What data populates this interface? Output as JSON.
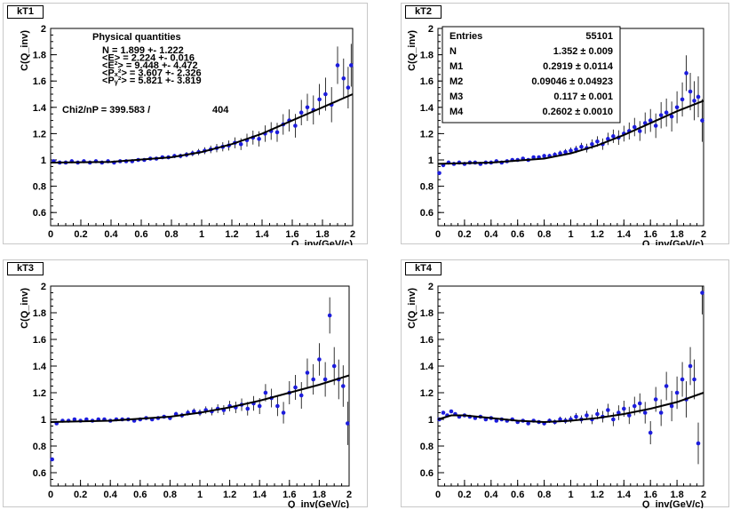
{
  "chart_data": [
    {
      "type": "scatter",
      "panel_label": "kT1",
      "ylabel": "C(Q_inv)",
      "xlabel": "Q_inv(GeV/c)",
      "xlim": [
        0,
        2
      ],
      "ylim": [
        0.5,
        2
      ],
      "x_ticks": [
        "0",
        "0.2",
        "0.4",
        "0.6",
        "0.8",
        "1",
        "1.2",
        "1.4",
        "1.6",
        "1.8",
        "2"
      ],
      "y_ticks": [
        "0.6",
        "0.8",
        "1",
        "1.2",
        "1.4",
        "1.6",
        "1.8",
        "2"
      ],
      "stats": {
        "title": "Physical quantities",
        "lines": [
          "N = 1.899 +- 1.222",
          "<E> = 2.224 +- 0.016",
          "<E²> = 9.448 +- 4.472",
          "<Pₓ²> = 3.607 +- 2.326",
          "<Pᵧ²> = 5.821 +- 3.819"
        ],
        "chi2_label": "Chi2/nP = 399.583 /",
        "chi2_n": "404"
      },
      "fit": [
        [
          0,
          0.98
        ],
        [
          0.4,
          0.985
        ],
        [
          0.8,
          1.02
        ],
        [
          1.0,
          1.06
        ],
        [
          1.2,
          1.12
        ],
        [
          1.4,
          1.2
        ],
        [
          1.6,
          1.3
        ],
        [
          1.8,
          1.4
        ],
        [
          1.9,
          1.45
        ],
        [
          2.0,
          1.5
        ]
      ],
      "points": [
        [
          0.02,
          0.99
        ],
        [
          0.06,
          0.98
        ],
        [
          0.1,
          0.98
        ],
        [
          0.14,
          0.99
        ],
        [
          0.18,
          0.98
        ],
        [
          0.22,
          0.99
        ],
        [
          0.26,
          0.98
        ],
        [
          0.3,
          0.99
        ],
        [
          0.34,
          0.98
        ],
        [
          0.38,
          0.99
        ],
        [
          0.42,
          0.98
        ],
        [
          0.46,
          0.99
        ],
        [
          0.5,
          0.99
        ],
        [
          0.54,
          0.99
        ],
        [
          0.58,
          1.0
        ],
        [
          0.62,
          1.0
        ],
        [
          0.66,
          1.01
        ],
        [
          0.7,
          1.01
        ],
        [
          0.74,
          1.02
        ],
        [
          0.78,
          1.02
        ],
        [
          0.82,
          1.03
        ],
        [
          0.86,
          1.03
        ],
        [
          0.9,
          1.04
        ],
        [
          0.94,
          1.05
        ],
        [
          0.98,
          1.06
        ],
        [
          1.02,
          1.07
        ],
        [
          1.06,
          1.08
        ],
        [
          1.1,
          1.09
        ],
        [
          1.14,
          1.1
        ],
        [
          1.18,
          1.11
        ],
        [
          1.22,
          1.13
        ],
        [
          1.26,
          1.12
        ],
        [
          1.3,
          1.15
        ],
        [
          1.34,
          1.17
        ],
        [
          1.38,
          1.16
        ],
        [
          1.42,
          1.2
        ],
        [
          1.46,
          1.22
        ],
        [
          1.5,
          1.21
        ],
        [
          1.54,
          1.27
        ],
        [
          1.58,
          1.3
        ],
        [
          1.62,
          1.26
        ],
        [
          1.66,
          1.36
        ],
        [
          1.7,
          1.4
        ],
        [
          1.74,
          1.38
        ],
        [
          1.78,
          1.46
        ],
        [
          1.82,
          1.5
        ],
        [
          1.86,
          1.42
        ],
        [
          1.9,
          1.72
        ],
        [
          1.94,
          1.62
        ],
        [
          1.97,
          1.55
        ],
        [
          1.99,
          1.72
        ]
      ]
    },
    {
      "type": "scatter",
      "panel_label": "kT2",
      "ylabel": "C(Q_inv)",
      "xlabel": "Q_inv(GeV/c)",
      "xlim": [
        0,
        2
      ],
      "ylim": [
        0.5,
        2
      ],
      "x_ticks": [
        "0",
        "0.2",
        "0.4",
        "0.6",
        "0.8",
        "1",
        "1.2",
        "1.4",
        "1.6",
        "1.8",
        "2"
      ],
      "y_ticks": [
        "0.6",
        "0.8",
        "1",
        "1.2",
        "1.4",
        "1.6",
        "1.8",
        "2"
      ],
      "stats": {
        "rows": [
          {
            "label": "Entries",
            "value": "55101"
          },
          {
            "label": "N",
            "value": "1.352 ± 0.009"
          },
          {
            "label": "M1",
            "value": "0.2919 ± 0.0114"
          },
          {
            "label": "M2",
            "value": "0.09046 ± 0.04923"
          },
          {
            "label": "M3",
            "value": "0.117 ± 0.001"
          },
          {
            "label": "M4",
            "value": "0.2602 ± 0.0010"
          }
        ]
      },
      "fit": [
        [
          0,
          0.97
        ],
        [
          0.4,
          0.98
        ],
        [
          0.8,
          1.01
        ],
        [
          1.0,
          1.05
        ],
        [
          1.2,
          1.11
        ],
        [
          1.4,
          1.19
        ],
        [
          1.6,
          1.28
        ],
        [
          1.8,
          1.37
        ],
        [
          2.0,
          1.45
        ]
      ],
      "points": [
        [
          0.01,
          0.9
        ],
        [
          0.04,
          0.96
        ],
        [
          0.08,
          0.98
        ],
        [
          0.12,
          0.97
        ],
        [
          0.16,
          0.98
        ],
        [
          0.2,
          0.97
        ],
        [
          0.24,
          0.98
        ],
        [
          0.28,
          0.98
        ],
        [
          0.32,
          0.97
        ],
        [
          0.36,
          0.98
        ],
        [
          0.4,
          0.98
        ],
        [
          0.44,
          0.99
        ],
        [
          0.48,
          0.98
        ],
        [
          0.52,
          0.99
        ],
        [
          0.56,
          1.0
        ],
        [
          0.6,
          1.0
        ],
        [
          0.64,
          1.01
        ],
        [
          0.68,
          1.0
        ],
        [
          0.72,
          1.02
        ],
        [
          0.76,
          1.02
        ],
        [
          0.8,
          1.03
        ],
        [
          0.84,
          1.03
        ],
        [
          0.88,
          1.04
        ],
        [
          0.92,
          1.05
        ],
        [
          0.96,
          1.06
        ],
        [
          1.0,
          1.07
        ],
        [
          1.04,
          1.08
        ],
        [
          1.08,
          1.1
        ],
        [
          1.12,
          1.09
        ],
        [
          1.16,
          1.12
        ],
        [
          1.2,
          1.14
        ],
        [
          1.24,
          1.12
        ],
        [
          1.28,
          1.16
        ],
        [
          1.32,
          1.18
        ],
        [
          1.36,
          1.17
        ],
        [
          1.4,
          1.2
        ],
        [
          1.44,
          1.22
        ],
        [
          1.48,
          1.25
        ],
        [
          1.52,
          1.22
        ],
        [
          1.56,
          1.28
        ],
        [
          1.6,
          1.3
        ],
        [
          1.64,
          1.26
        ],
        [
          1.68,
          1.34
        ],
        [
          1.72,
          1.36
        ],
        [
          1.76,
          1.33
        ],
        [
          1.8,
          1.4
        ],
        [
          1.84,
          1.46
        ],
        [
          1.87,
          1.66
        ],
        [
          1.9,
          1.52
        ],
        [
          1.93,
          1.45
        ],
        [
          1.96,
          1.48
        ],
        [
          1.99,
          1.3
        ]
      ]
    },
    {
      "type": "scatter",
      "panel_label": "kT3",
      "ylabel": "C(Q_inv)",
      "xlabel": "Q_inv(GeV/c)",
      "xlim": [
        0,
        2
      ],
      "ylim": [
        0.5,
        2
      ],
      "x_ticks": [
        "0",
        "0.2",
        "0.4",
        "0.6",
        "0.8",
        "1",
        "1.2",
        "1.4",
        "1.6",
        "1.8",
        "2"
      ],
      "y_ticks": [
        "0.6",
        "0.8",
        "1",
        "1.2",
        "1.4",
        "1.6",
        "1.8",
        "2"
      ],
      "fit": [
        [
          0,
          0.98
        ],
        [
          0.4,
          0.99
        ],
        [
          0.8,
          1.02
        ],
        [
          1.0,
          1.05
        ],
        [
          1.2,
          1.09
        ],
        [
          1.4,
          1.14
        ],
        [
          1.6,
          1.2
        ],
        [
          1.8,
          1.26
        ],
        [
          2.0,
          1.33
        ]
      ],
      "points": [
        [
          0.01,
          0.7
        ],
        [
          0.04,
          0.97
        ],
        [
          0.08,
          0.99
        ],
        [
          0.12,
          0.99
        ],
        [
          0.16,
          1.0
        ],
        [
          0.2,
          0.99
        ],
        [
          0.24,
          1.0
        ],
        [
          0.28,
          0.99
        ],
        [
          0.32,
          1.0
        ],
        [
          0.36,
          1.0
        ],
        [
          0.4,
          0.99
        ],
        [
          0.44,
          1.0
        ],
        [
          0.48,
          1.0
        ],
        [
          0.52,
          1.0
        ],
        [
          0.56,
          0.99
        ],
        [
          0.6,
          1.0
        ],
        [
          0.64,
          1.01
        ],
        [
          0.68,
          1.0
        ],
        [
          0.72,
          1.01
        ],
        [
          0.76,
          1.02
        ],
        [
          0.8,
          1.01
        ],
        [
          0.84,
          1.04
        ],
        [
          0.88,
          1.03
        ],
        [
          0.92,
          1.05
        ],
        [
          0.96,
          1.06
        ],
        [
          1.0,
          1.05
        ],
        [
          1.04,
          1.07
        ],
        [
          1.08,
          1.06
        ],
        [
          1.12,
          1.08
        ],
        [
          1.16,
          1.07
        ],
        [
          1.2,
          1.1
        ],
        [
          1.24,
          1.09
        ],
        [
          1.28,
          1.11
        ],
        [
          1.32,
          1.08
        ],
        [
          1.36,
          1.12
        ],
        [
          1.4,
          1.1
        ],
        [
          1.44,
          1.2
        ],
        [
          1.48,
          1.16
        ],
        [
          1.52,
          1.1
        ],
        [
          1.56,
          1.05
        ],
        [
          1.6,
          1.2
        ],
        [
          1.64,
          1.24
        ],
        [
          1.68,
          1.18
        ],
        [
          1.72,
          1.35
        ],
        [
          1.76,
          1.3
        ],
        [
          1.8,
          1.45
        ],
        [
          1.84,
          1.3
        ],
        [
          1.87,
          1.78
        ],
        [
          1.9,
          1.4
        ],
        [
          1.93,
          1.3
        ],
        [
          1.96,
          1.25
        ],
        [
          1.99,
          0.97
        ]
      ]
    },
    {
      "type": "scatter",
      "panel_label": "kT4",
      "ylabel": "C(Q_inv)",
      "xlabel": "Q_inv(GeV/c)",
      "xlim": [
        0,
        2
      ],
      "ylim": [
        0.5,
        2
      ],
      "x_ticks": [
        "0",
        "0.2",
        "0.4",
        "0.6",
        "0.8",
        "1",
        "1.2",
        "1.4",
        "1.6",
        "1.8",
        "2"
      ],
      "y_ticks": [
        "0.6",
        "0.8",
        "1",
        "1.2",
        "1.4",
        "1.6",
        "1.8",
        "2"
      ],
      "fit": [
        [
          0,
          1.0
        ],
        [
          0.1,
          1.03
        ],
        [
          0.2,
          1.03
        ],
        [
          0.4,
          1.01
        ],
        [
          0.6,
          0.99
        ],
        [
          0.8,
          0.98
        ],
        [
          1.0,
          0.99
        ],
        [
          1.2,
          1.01
        ],
        [
          1.4,
          1.04
        ],
        [
          1.6,
          1.08
        ],
        [
          1.8,
          1.13
        ],
        [
          2.0,
          1.2
        ]
      ],
      "points": [
        [
          0.01,
          1.0
        ],
        [
          0.04,
          1.05
        ],
        [
          0.07,
          1.03
        ],
        [
          0.1,
          1.06
        ],
        [
          0.13,
          1.04
        ],
        [
          0.16,
          1.02
        ],
        [
          0.2,
          1.03
        ],
        [
          0.24,
          1.02
        ],
        [
          0.28,
          1.01
        ],
        [
          0.32,
          1.02
        ],
        [
          0.36,
          1.0
        ],
        [
          0.4,
          1.01
        ],
        [
          0.44,
          0.99
        ],
        [
          0.48,
          1.0
        ],
        [
          0.52,
          0.99
        ],
        [
          0.56,
          1.0
        ],
        [
          0.6,
          0.98
        ],
        [
          0.64,
          0.99
        ],
        [
          0.68,
          0.97
        ],
        [
          0.72,
          0.99
        ],
        [
          0.76,
          0.98
        ],
        [
          0.8,
          0.97
        ],
        [
          0.84,
          0.99
        ],
        [
          0.88,
          0.98
        ],
        [
          0.92,
          1.0
        ],
        [
          0.96,
          0.99
        ],
        [
          1.0,
          1.0
        ],
        [
          1.04,
          1.02
        ],
        [
          1.08,
          1.0
        ],
        [
          1.12,
          1.03
        ],
        [
          1.16,
          1.0
        ],
        [
          1.2,
          1.04
        ],
        [
          1.24,
          1.02
        ],
        [
          1.28,
          1.07
        ],
        [
          1.32,
          1.0
        ],
        [
          1.36,
          1.05
        ],
        [
          1.4,
          1.08
        ],
        [
          1.44,
          1.03
        ],
        [
          1.48,
          1.1
        ],
        [
          1.52,
          1.12
        ],
        [
          1.56,
          1.05
        ],
        [
          1.6,
          0.9
        ],
        [
          1.64,
          1.15
        ],
        [
          1.68,
          1.05
        ],
        [
          1.72,
          1.25
        ],
        [
          1.76,
          1.1
        ],
        [
          1.8,
          1.2
        ],
        [
          1.84,
          1.3
        ],
        [
          1.87,
          1.15
        ],
        [
          1.9,
          1.4
        ],
        [
          1.93,
          1.3
        ],
        [
          1.96,
          0.82
        ],
        [
          1.99,
          1.95
        ]
      ]
    }
  ]
}
